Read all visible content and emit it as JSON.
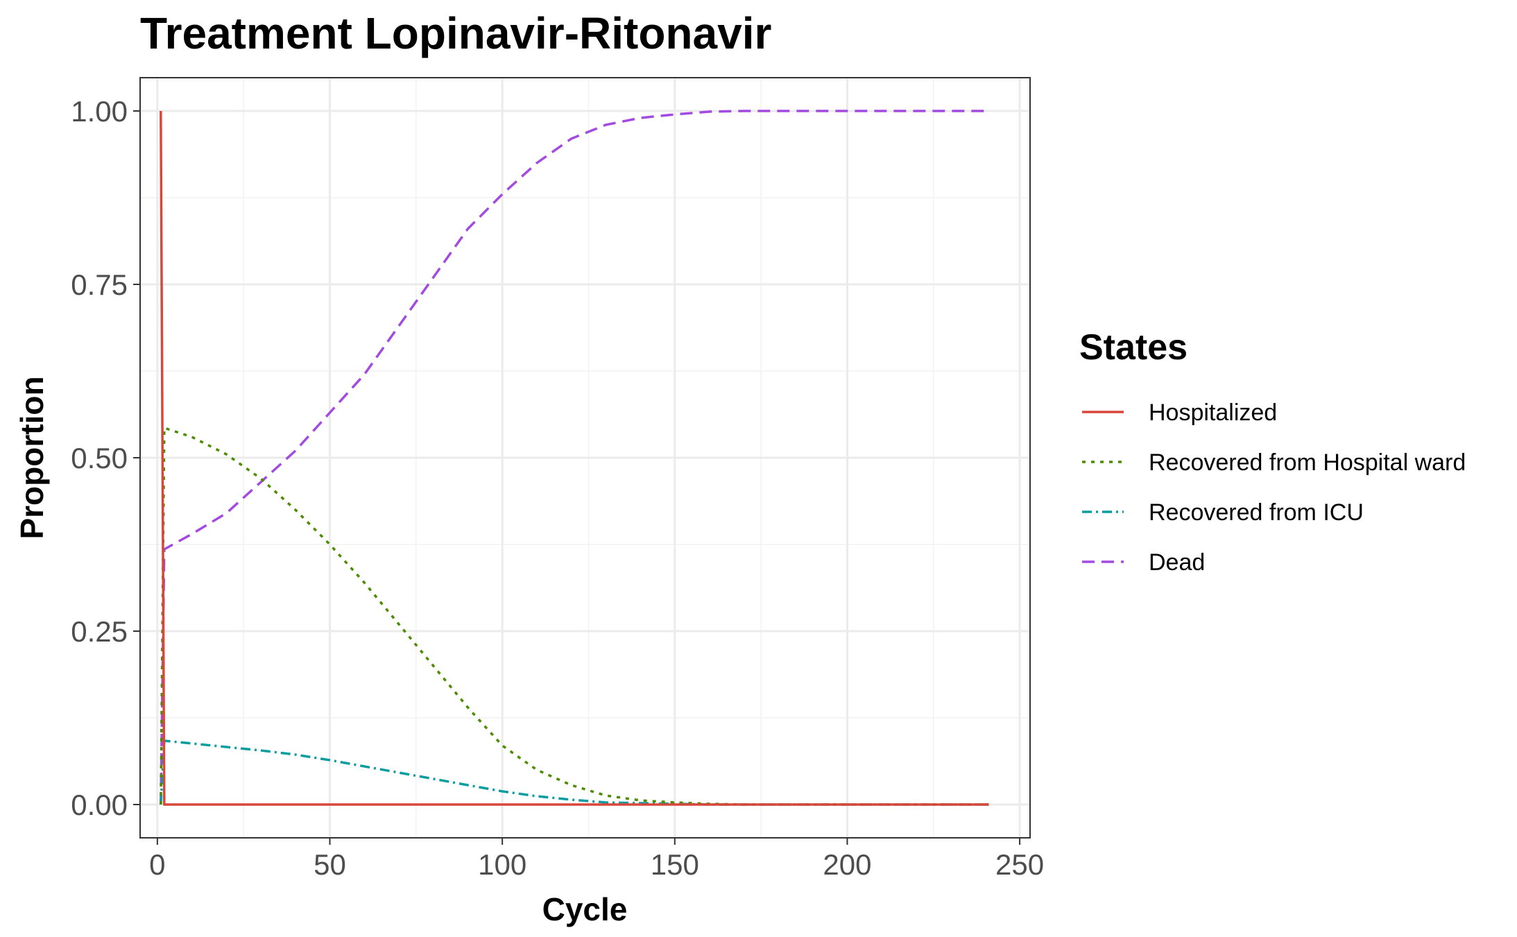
{
  "chart_data": {
    "type": "line",
    "title": "Treatment Lopinavir-Ritonavir",
    "xlabel": "Cycle",
    "ylabel": "Proportion",
    "xlim": [
      -5,
      253
    ],
    "ylim": [
      -0.048,
      1.048
    ],
    "x_ticks": [
      0,
      50,
      100,
      150,
      200,
      250
    ],
    "x_tick_labels": [
      "0",
      "50",
      "100",
      "150",
      "200",
      "250"
    ],
    "y_ticks": [
      0,
      0.25,
      0.5,
      0.75,
      1.0
    ],
    "y_tick_labels": [
      "0.00",
      "0.25",
      "0.50",
      "0.75",
      "1.00"
    ],
    "grid": true,
    "legend": {
      "title": "States",
      "position": "right"
    },
    "series": [
      {
        "name": "Hospitalized",
        "color": "#D9473A",
        "dash": "solid",
        "x": [
          1,
          2,
          241
        ],
        "y": [
          1.0,
          0.0,
          0.0
        ]
      },
      {
        "name": "Recovered from Hospital ward",
        "color": "#4C8C00",
        "dash": "dotted",
        "x": [
          1,
          2,
          10,
          20,
          30,
          40,
          50,
          60,
          70,
          80,
          90,
          100,
          110,
          120,
          130,
          140,
          150,
          160,
          170,
          180,
          190,
          200,
          220,
          241
        ],
        "y": [
          0.0,
          0.543,
          0.53,
          0.505,
          0.47,
          0.425,
          0.375,
          0.32,
          0.26,
          0.2,
          0.14,
          0.085,
          0.05,
          0.028,
          0.013,
          0.006,
          0.003,
          0.001,
          0.0,
          0.0,
          0.0,
          0.0,
          0.0,
          0.0
        ]
      },
      {
        "name": "Recovered from ICU",
        "color": "#0A9DA0",
        "dash": "dashed",
        "x": [
          1,
          2,
          10,
          20,
          30,
          40,
          50,
          60,
          70,
          80,
          90,
          100,
          110,
          120,
          130,
          140,
          150,
          160,
          170,
          180,
          200,
          220,
          241
        ],
        "y": [
          0.0,
          0.092,
          0.088,
          0.083,
          0.078,
          0.072,
          0.064,
          0.055,
          0.046,
          0.037,
          0.028,
          0.019,
          0.012,
          0.007,
          0.003,
          0.002,
          0.001,
          0.0,
          0.0,
          0.0,
          0.0,
          0.0,
          0.0
        ]
      },
      {
        "name": "Dead",
        "color": "#A34BE0",
        "dash": "longdash",
        "x": [
          1,
          2,
          10,
          20,
          30,
          40,
          50,
          60,
          70,
          80,
          90,
          100,
          110,
          120,
          130,
          140,
          150,
          160,
          170,
          180,
          200,
          220,
          241
        ],
        "y": [
          0.0,
          0.368,
          0.39,
          0.42,
          0.465,
          0.51,
          0.565,
          0.62,
          0.69,
          0.76,
          0.83,
          0.88,
          0.925,
          0.96,
          0.98,
          0.99,
          0.995,
          0.999,
          1.0,
          1.0,
          1.0,
          1.0,
          1.0
        ]
      }
    ]
  }
}
